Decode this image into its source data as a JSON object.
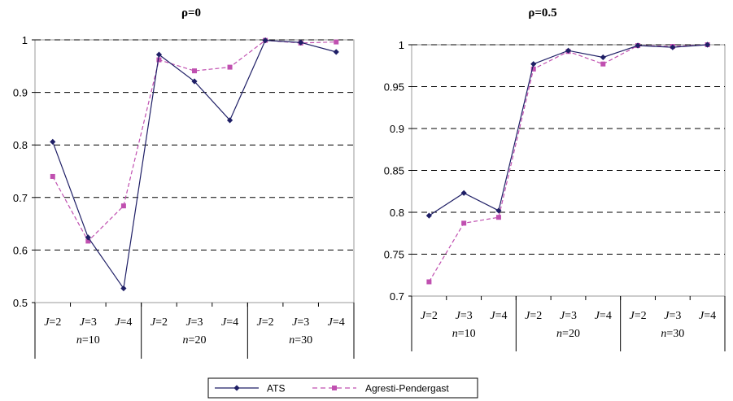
{
  "chart_data": [
    {
      "type": "line",
      "title": "ρ=0",
      "categories": [
        "J=2",
        "J=3",
        "J=4",
        "J=2",
        "J=3",
        "J=4",
        "J=2",
        "J=3",
        "J=4"
      ],
      "groups": [
        "n=10",
        "n=20",
        "n=30"
      ],
      "ylim": [
        0.5,
        1.0
      ],
      "yticks": [
        0.5,
        0.6,
        0.7,
        0.8,
        0.9,
        1
      ],
      "ytick_labels": [
        "0.5",
        "0.6",
        "0.7",
        "0.8",
        "0.9",
        "1"
      ],
      "grid": true,
      "series": [
        {
          "name": "ATS",
          "color": "#1f1f66",
          "dashed": false,
          "marker": "diamond",
          "values": [
            0.806,
            0.624,
            0.527,
            0.972,
            0.921,
            0.847,
            0.999,
            0.995,
            0.977
          ]
        },
        {
          "name": "Agresti-Pendergast",
          "color": "#c050b0",
          "dashed": true,
          "marker": "square",
          "values": [
            0.74,
            0.617,
            0.684,
            0.962,
            0.941,
            0.948,
            0.999,
            0.994,
            0.996
          ]
        }
      ]
    },
    {
      "type": "line",
      "title": "ρ=0.5",
      "categories": [
        "J=2",
        "J=3",
        "J=4",
        "J=2",
        "J=3",
        "J=4",
        "J=2",
        "J=3",
        "J=4"
      ],
      "groups": [
        "n=10",
        "n=20",
        "n=30"
      ],
      "ylim": [
        0.7,
        1.0
      ],
      "yticks": [
        0.7,
        0.75,
        0.8,
        0.85,
        0.9,
        0.95,
        1
      ],
      "ytick_labels": [
        "0.7",
        "0.75",
        "0.8",
        "0.85",
        "0.9",
        "0.95",
        "1"
      ],
      "grid": true,
      "series": [
        {
          "name": "ATS",
          "color": "#1f1f66",
          "dashed": false,
          "marker": "diamond",
          "values": [
            0.796,
            0.823,
            0.802,
            0.977,
            0.993,
            0.985,
            0.999,
            0.997,
            1.0
          ]
        },
        {
          "name": "Agresti-Pendergast",
          "color": "#c050b0",
          "dashed": true,
          "marker": "square",
          "values": [
            0.717,
            0.787,
            0.794,
            0.971,
            0.992,
            0.977,
            0.999,
            0.998,
            1.0
          ]
        }
      ]
    }
  ],
  "legend": {
    "position": "bottom-center",
    "items": [
      {
        "label": "ATS",
        "color": "#1f1f66",
        "dashed": false,
        "marker": "diamond"
      },
      {
        "label": "Agresti-Pendergast",
        "color": "#c050b0",
        "dashed": true,
        "marker": "square"
      }
    ]
  }
}
